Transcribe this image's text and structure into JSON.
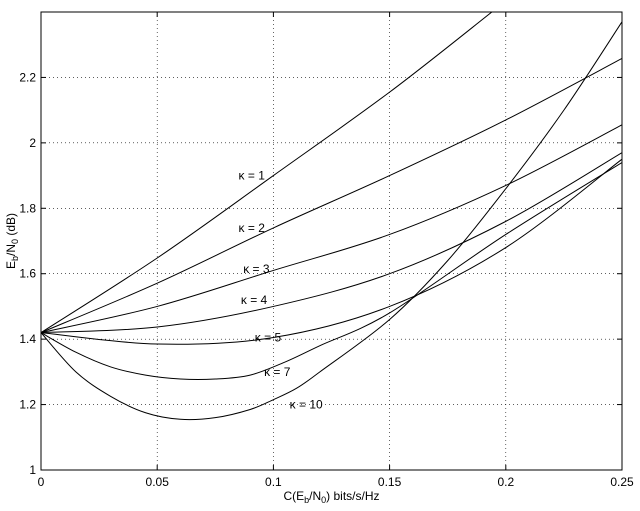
{
  "chart_data": {
    "type": "line",
    "title": "",
    "xlabel": {
      "main": "C(E",
      "sub1": "b",
      "mid": "/N",
      "sub2": "0",
      "tail": ") bits/s/Hz"
    },
    "ylabel": {
      "main": "E",
      "sub1": "b",
      "mid": "/N",
      "sub2": "0",
      "tail": " (dB)"
    },
    "xlim": [
      0,
      0.25
    ],
    "ylim": [
      1,
      2.4
    ],
    "x_ticks": [
      0,
      0.05,
      0.1,
      0.15,
      0.2,
      0.25
    ],
    "x_tick_labels": [
      "0",
      "0.05",
      "0.1",
      "0.15",
      "0.2",
      "0.25"
    ],
    "y_ticks": [
      1,
      1.2,
      1.4,
      1.6,
      1.8,
      2,
      2.2
    ],
    "y_tick_labels": [
      "1",
      "1.2",
      "1.4",
      "1.6",
      "1.8",
      "2",
      "2.2"
    ],
    "grid": true,
    "series": [
      {
        "name": "κ = 1",
        "x": [
          0,
          0.05,
          0.1,
          0.15,
          0.194
        ],
        "y": [
          1.42,
          1.648,
          1.9,
          2.155,
          2.4
        ]
      },
      {
        "name": "κ = 2",
        "x": [
          0,
          0.05,
          0.1,
          0.15,
          0.2,
          0.25
        ],
        "y": [
          1.42,
          1.571,
          1.74,
          1.9,
          2.07,
          2.258
        ]
      },
      {
        "name": "κ = 3",
        "x": [
          0,
          0.05,
          0.1,
          0.15,
          0.2,
          0.25
        ],
        "y": [
          1.42,
          1.5,
          1.61,
          1.72,
          1.87,
          2.055
        ]
      },
      {
        "name": "κ = 4",
        "x": [
          0,
          0.05,
          0.1,
          0.15,
          0.2,
          0.25
        ],
        "y": [
          1.42,
          1.437,
          1.5,
          1.6,
          1.76,
          1.97
        ]
      },
      {
        "name": "κ = 5",
        "x": [
          0,
          0.05,
          0.1,
          0.15,
          0.2,
          0.25
        ],
        "y": [
          1.42,
          1.385,
          1.405,
          1.5,
          1.68,
          1.95
        ]
      },
      {
        "name": "κ = 7",
        "x": [
          0,
          0.015,
          0.03,
          0.045,
          0.06,
          0.075,
          0.09,
          0.105,
          0.12,
          0.15,
          0.2,
          0.25
        ],
        "y": [
          1.42,
          1.36,
          1.315,
          1.29,
          1.278,
          1.278,
          1.29,
          1.33,
          1.38,
          1.48,
          1.72,
          1.94
        ]
      },
      {
        "name": "κ = 10",
        "x": [
          0,
          0.015,
          0.03,
          0.045,
          0.06,
          0.075,
          0.09,
          0.1,
          0.11,
          0.12,
          0.15,
          0.175,
          0.2,
          0.225,
          0.25
        ],
        "y": [
          1.42,
          1.3,
          1.225,
          1.175,
          1.155,
          1.16,
          1.185,
          1.215,
          1.25,
          1.3,
          1.46,
          1.64,
          1.86,
          2.1,
          2.37
        ]
      }
    ],
    "label_positions": [
      {
        "text": "κ = 1",
        "x": 0.085,
        "y": 1.9
      },
      {
        "text": "κ = 2",
        "x": 0.085,
        "y": 1.74
      },
      {
        "text": "κ = 3",
        "x": 0.087,
        "y": 1.615
      },
      {
        "text": "κ = 4",
        "x": 0.086,
        "y": 1.52
      },
      {
        "text": "κ = 5",
        "x": 0.092,
        "y": 1.405
      },
      {
        "text": "κ = 7",
        "x": 0.096,
        "y": 1.3
      },
      {
        "text": "κ = 10",
        "x": 0.107,
        "y": 1.2
      }
    ]
  }
}
